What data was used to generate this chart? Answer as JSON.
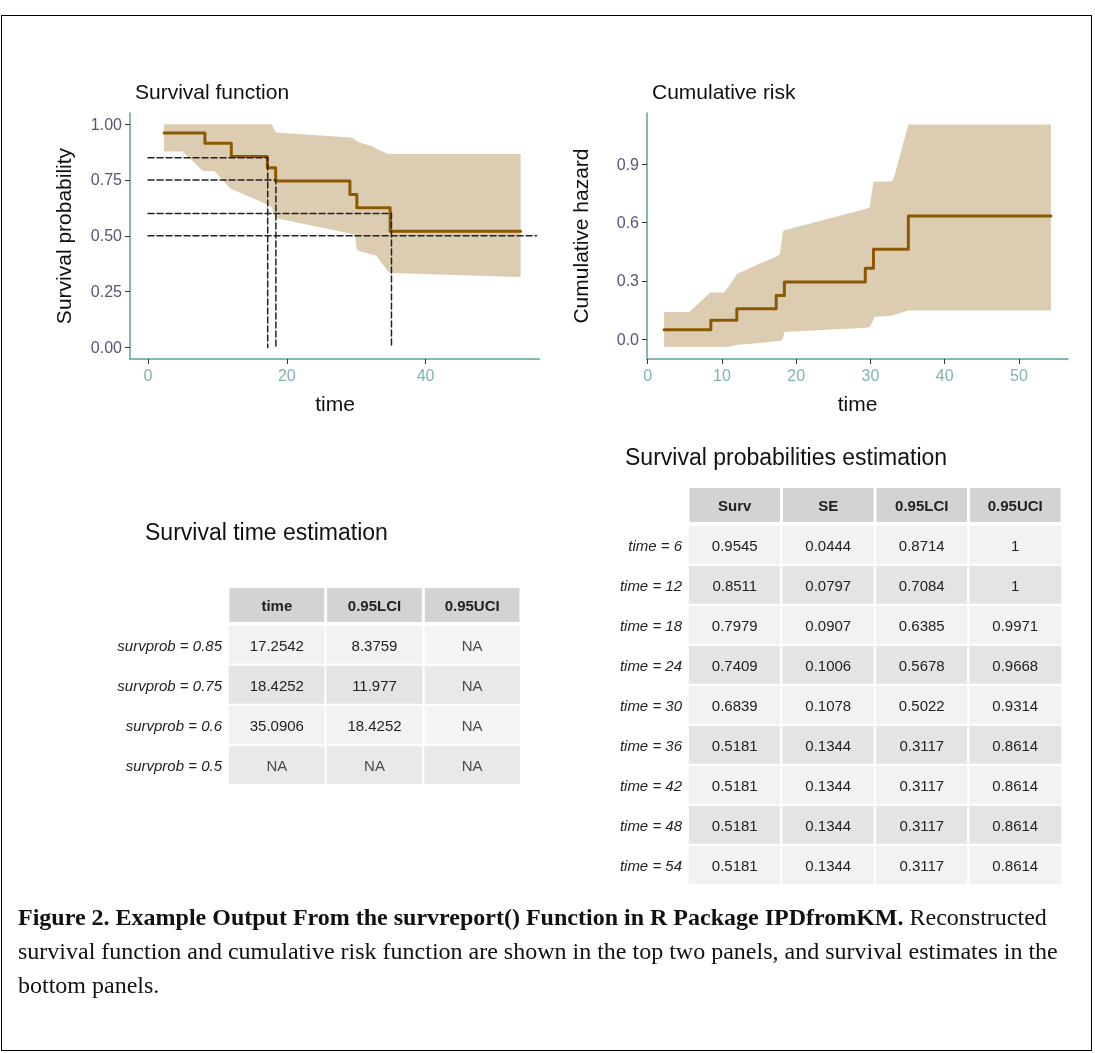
{
  "chart_data": [
    {
      "type": "step",
      "title": "Survival function",
      "xlabel": "time",
      "ylabel": "Survival probability",
      "xlim": [
        -2.6,
        56.5
      ],
      "xticks": [
        0,
        20,
        40
      ],
      "ylim": [
        -0.052,
        1.05
      ],
      "yticks": [
        {
          "value": 0,
          "label": "0.00"
        },
        {
          "value": 0.25,
          "label": "0.25"
        },
        {
          "value": 0.5,
          "label": "0.50"
        },
        {
          "value": 0.75,
          "label": "0.75"
        },
        {
          "value": 1,
          "label": "1.00"
        }
      ],
      "grid": false,
      "marker": "none",
      "series": [
        {
          "color": "#8b5a00",
          "x": [
            2.3,
            5.0,
            7.9,
            8.2,
            9.6,
            11.8,
            12.0,
            17.2,
            17.8,
            18.4,
            18.5,
            29.1,
            29.6,
            29.8,
            30.1,
            30.3,
            32.4,
            32.9,
            34.6,
            34.9,
            53.7
          ],
          "values": [
            0.96,
            0.96,
            0.96,
            0.915,
            0.915,
            0.915,
            0.855,
            0.805,
            0.805,
            0.745,
            0.745,
            0.685,
            0.685,
            0.685,
            0.625,
            0.625,
            0.625,
            0.625,
            0.625,
            0.52,
            0.52
          ],
          "upper": [
            1.0,
            1.0,
            1.0,
            1.0,
            1.0,
            1.0,
            1.0,
            1.0,
            1.0,
            0.965,
            0.963,
            0.94,
            0.937,
            0.93,
            0.925,
            0.92,
            0.9,
            0.89,
            0.866,
            0.866,
            0.866
          ],
          "lower": [
            0.878,
            0.878,
            0.79,
            0.79,
            0.79,
            0.713,
            0.71,
            0.64,
            0.63,
            0.58,
            0.578,
            0.51,
            0.505,
            0.504,
            0.44,
            0.433,
            0.415,
            0.41,
            0.34,
            0.333,
            0.315
          ]
        },
        {
          "type": "line",
          "line_style": "dashed",
          "color": "#222222",
          "x": [
            0,
            17.25,
            17.25
          ],
          "values": [
            0.85,
            0.85,
            0
          ]
        },
        {
          "type": "line",
          "line_style": "dashed",
          "color": "#222222",
          "x": [
            0,
            18.43,
            18.43
          ],
          "values": [
            0.75,
            0.75,
            0
          ]
        },
        {
          "type": "line",
          "line_style": "dashed",
          "color": "#222222",
          "x": [
            0,
            35.09,
            35.09
          ],
          "values": [
            0.6,
            0.6,
            0
          ]
        },
        {
          "type": "line",
          "line_style": "dashed",
          "color": "#222222",
          "x": [
            0,
            56
          ],
          "values": [
            0.5,
            0.5
          ]
        }
      ]
    },
    {
      "type": "step",
      "title": "Cumulative risk",
      "xlabel": "time",
      "ylabel": "Cumulative hazard",
      "xlim": [
        -0.1,
        56.6
      ],
      "xticks": [
        0,
        10,
        20,
        30,
        40,
        50
      ],
      "ylim": [
        -0.103,
        1.164
      ],
      "yticks": [
        {
          "value": 0,
          "label": "0.0"
        },
        0.3,
        0.6,
        0.9
      ],
      "grid": false,
      "marker": "none",
      "series": [
        {
          "color": "#8b5a00",
          "x": [
            2.2,
            5.6,
            8.4,
            8.5,
            10.3,
            10.9,
            12.0,
            15.2,
            17.3,
            17.8,
            18.2,
            18.4,
            29.3,
            29.9,
            30.4,
            30.5,
            32.9,
            33.3,
            35.1,
            54.3
          ],
          "values": [
            0.048,
            0.048,
            0.048,
            0.096,
            0.096,
            0.096,
            0.156,
            0.156,
            0.224,
            0.224,
            0.224,
            0.293,
            0.364,
            0.364,
            0.462,
            0.462,
            0.462,
            0.462,
            0.633,
            0.633
          ],
          "upper": [
            0.139,
            0.139,
            0.24,
            0.24,
            0.24,
            0.27,
            0.335,
            0.39,
            0.425,
            0.436,
            0.553,
            0.56,
            0.67,
            0.678,
            0.811,
            0.811,
            0.811,
            0.85,
            1.105,
            1.105
          ],
          "lower": [
            -0.041,
            -0.041,
            -0.041,
            -0.041,
            -0.041,
            -0.041,
            -0.03,
            -0.02,
            -0.012,
            -0.01,
            0.0,
            0.036,
            0.058,
            0.06,
            0.1,
            0.113,
            0.12,
            0.125,
            0.147,
            0.147
          ]
        }
      ]
    },
    {
      "type": "heatmap",
      "title": "Survival time estimation",
      "categories": [
        "time",
        "0.95LCI",
        "0.95UCI"
      ],
      "y_categories": [
        "survprob = 0.85",
        "survprob = 0.75",
        "survprob = 0.6",
        "survprob = 0.5"
      ],
      "cells": [
        [
          17.2542,
          8.3759,
          null
        ],
        [
          18.4252,
          11.977,
          null
        ],
        [
          35.0906,
          18.4252,
          null
        ],
        [
          null,
          null,
          null
        ]
      ],
      "cell_labels": [
        [
          "17.2542",
          "8.3759",
          "NA"
        ],
        [
          "18.4252",
          "11.977",
          "NA"
        ],
        [
          "35.0906",
          "18.4252",
          "NA"
        ],
        [
          "NA",
          "NA",
          "NA"
        ]
      ]
    },
    {
      "type": "heatmap",
      "title": "Survival probabilities estimation",
      "categories": [
        "Surv",
        "SE",
        "0.95LCI",
        "0.95UCI"
      ],
      "data_labels": true,
      "y_categories": [
        "time = 6",
        "time = 12",
        "time = 18",
        "time = 24",
        "time = 30",
        "time = 36",
        "time = 42",
        "time = 48",
        "time = 54"
      ],
      "cells": [
        [
          0.9545,
          0.0444,
          0.8714,
          1
        ],
        [
          0.8511,
          0.0797,
          0.7084,
          1
        ],
        [
          0.7979,
          0.0907,
          0.6385,
          0.9971
        ],
        [
          0.7409,
          0.1006,
          0.5678,
          0.9668
        ],
        [
          0.6839,
          0.1078,
          0.5022,
          0.9314
        ],
        [
          0.5181,
          0.1344,
          0.3117,
          0.8614
        ],
        [
          0.5181,
          0.1344,
          0.3117,
          0.8614
        ],
        [
          0.5181,
          0.1344,
          0.3117,
          0.8614
        ],
        [
          0.5181,
          0.1344,
          0.3117,
          0.8614
        ]
      ],
      "annotations": [
        "Figure 2. Example Output From the survreport() Function in R Package IPDfromKM.",
        "Reconstructed survival function and cumulative risk function are shown in the top two panels, and survival estimates in the bottom panels."
      ]
    }
  ]
}
